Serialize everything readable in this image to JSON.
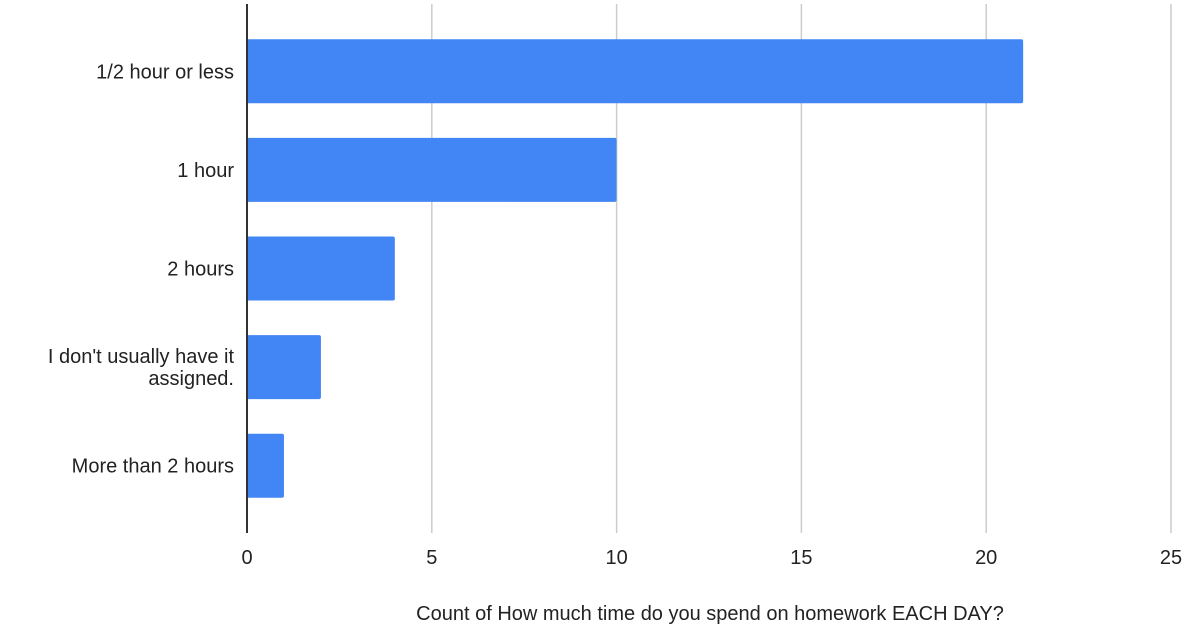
{
  "chart_data": {
    "type": "bar",
    "orientation": "horizontal",
    "categories": [
      "1/2 hour or less",
      "1 hour",
      "2 hours",
      "I don't usually have it assigned.",
      "More than 2 hours"
    ],
    "category_lines": [
      [
        "1/2 hour or less"
      ],
      [
        "1 hour"
      ],
      [
        "2 hours"
      ],
      [
        "I don't usually have it",
        "assigned."
      ],
      [
        "More than 2 hours"
      ]
    ],
    "values": [
      21,
      10,
      4,
      2,
      1
    ],
    "xlabel": "Count of How much time do you spend on homework EACH DAY?",
    "ylabel": "",
    "xlim": [
      0,
      25
    ],
    "xticks": [
      0,
      5,
      10,
      15,
      20,
      25
    ],
    "grid": true,
    "legend": "none",
    "bar_color": "#4285f4",
    "grid_color": "#cccccc",
    "axis_color": "#333333"
  }
}
